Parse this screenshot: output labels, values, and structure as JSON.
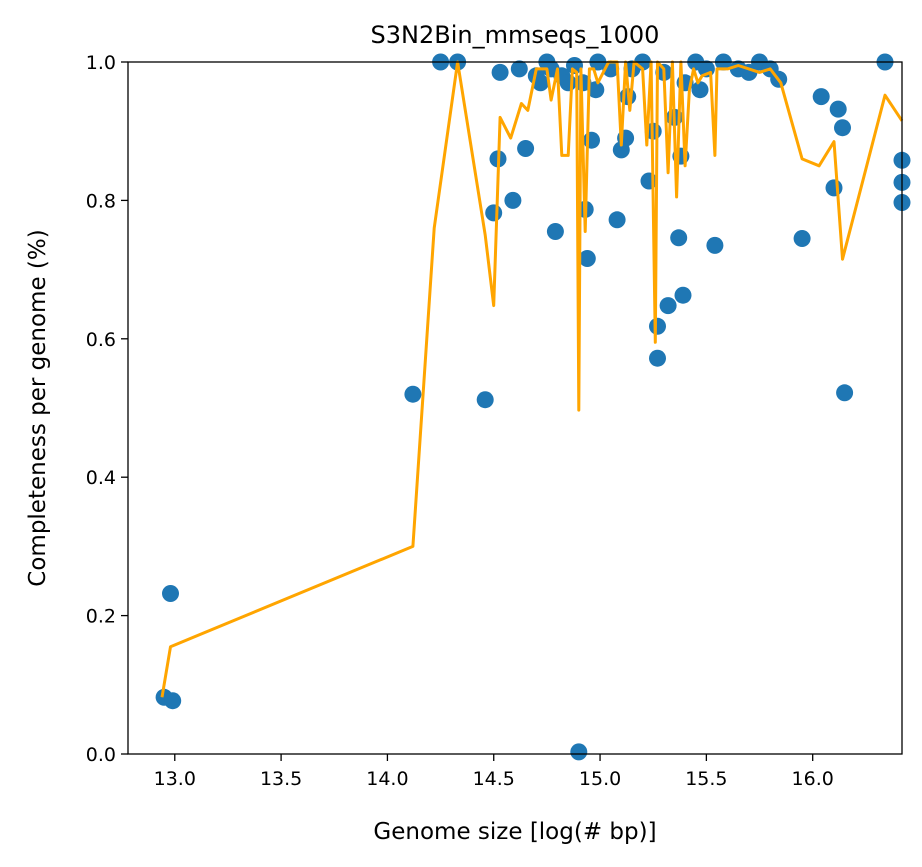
{
  "chart_data": {
    "type": "scatter",
    "title": "S3N2Bin_mmseqs_1000",
    "xlabel": "Genome size [log(# bp)]",
    "ylabel": "Completeness per genome (%)",
    "xlim": [
      12.78,
      16.42
    ],
    "ylim": [
      0.0,
      1.0
    ],
    "xticks": [
      "13.0",
      "13.5",
      "14.0",
      "14.5",
      "15.0",
      "15.5",
      "16.0"
    ],
    "yticks": [
      "0.0",
      "0.2",
      "0.4",
      "0.6",
      "0.8",
      "1.0"
    ],
    "grid": false,
    "legend": "none",
    "colors": {
      "scatter": "#1f77b4",
      "line": "#ffa500"
    },
    "series": [
      {
        "type": "scatter",
        "points": [
          [
            12.95,
            0.082
          ],
          [
            12.98,
            0.232
          ],
          [
            12.99,
            0.077
          ],
          [
            14.12,
            0.52
          ],
          [
            14.25,
            1.0
          ],
          [
            14.33,
            1.0
          ],
          [
            14.46,
            0.512
          ],
          [
            14.5,
            0.782
          ],
          [
            14.52,
            0.86
          ],
          [
            14.53,
            0.985
          ],
          [
            14.59,
            0.8
          ],
          [
            14.62,
            0.99
          ],
          [
            14.65,
            0.875
          ],
          [
            14.7,
            0.98
          ],
          [
            14.72,
            0.97
          ],
          [
            14.75,
            1.0
          ],
          [
            14.77,
            0.99
          ],
          [
            14.79,
            0.755
          ],
          [
            14.82,
            0.98
          ],
          [
            14.85,
            0.97
          ],
          [
            14.88,
            0.995
          ],
          [
            14.9,
            0.003
          ],
          [
            14.92,
            0.97
          ],
          [
            14.93,
            0.787
          ],
          [
            14.94,
            0.716
          ],
          [
            14.96,
            0.887
          ],
          [
            14.98,
            0.96
          ],
          [
            14.99,
            1.0
          ],
          [
            15.05,
            0.99
          ],
          [
            15.08,
            0.772
          ],
          [
            15.1,
            0.873
          ],
          [
            15.12,
            0.89
          ],
          [
            15.13,
            0.95
          ],
          [
            15.15,
            0.99
          ],
          [
            15.2,
            1.0
          ],
          [
            15.23,
            0.828
          ],
          [
            15.25,
            0.9
          ],
          [
            15.27,
            0.572
          ],
          [
            15.27,
            0.618
          ],
          [
            15.3,
            0.985
          ],
          [
            15.32,
            0.648
          ],
          [
            15.35,
            0.92
          ],
          [
            15.37,
            0.746
          ],
          [
            15.38,
            0.864
          ],
          [
            15.39,
            0.663
          ],
          [
            15.4,
            0.97
          ],
          [
            15.45,
            1.0
          ],
          [
            15.47,
            0.96
          ],
          [
            15.5,
            0.99
          ],
          [
            15.54,
            0.735
          ],
          [
            15.58,
            1.0
          ],
          [
            15.65,
            0.99
          ],
          [
            15.7,
            0.985
          ],
          [
            15.75,
            1.0
          ],
          [
            15.8,
            0.99
          ],
          [
            15.84,
            0.975
          ],
          [
            15.95,
            0.745
          ],
          [
            16.04,
            0.95
          ],
          [
            16.1,
            0.818
          ],
          [
            16.12,
            0.932
          ],
          [
            16.14,
            0.905
          ],
          [
            16.15,
            0.522
          ],
          [
            16.34,
            1.0
          ],
          [
            16.42,
            0.858
          ],
          [
            16.42,
            0.826
          ],
          [
            16.42,
            0.797
          ]
        ]
      },
      {
        "type": "line",
        "points": [
          [
            12.94,
            0.082
          ],
          [
            12.98,
            0.155
          ],
          [
            14.12,
            0.3
          ],
          [
            14.22,
            0.76
          ],
          [
            14.33,
            1.0
          ],
          [
            14.46,
            0.75
          ],
          [
            14.5,
            0.648
          ],
          [
            14.53,
            0.92
          ],
          [
            14.58,
            0.89
          ],
          [
            14.63,
            0.94
          ],
          [
            14.66,
            0.93
          ],
          [
            14.7,
            0.99
          ],
          [
            14.75,
            0.99
          ],
          [
            14.77,
            0.945
          ],
          [
            14.8,
            0.99
          ],
          [
            14.82,
            0.865
          ],
          [
            14.85,
            0.865
          ],
          [
            14.87,
            0.99
          ],
          [
            14.89,
            0.985
          ],
          [
            14.9,
            0.497
          ],
          [
            14.91,
            0.99
          ],
          [
            14.93,
            0.755
          ],
          [
            14.95,
            0.99
          ],
          [
            14.97,
            0.99
          ],
          [
            14.99,
            0.97
          ],
          [
            15.04,
            1.0
          ],
          [
            15.08,
            1.0
          ],
          [
            15.1,
            0.88
          ],
          [
            15.12,
            1.0
          ],
          [
            15.14,
            0.93
          ],
          [
            15.16,
            1.0
          ],
          [
            15.2,
            0.99
          ],
          [
            15.22,
            0.88
          ],
          [
            15.24,
            1.0
          ],
          [
            15.26,
            0.595
          ],
          [
            15.27,
            1.0
          ],
          [
            15.3,
            0.99
          ],
          [
            15.32,
            0.84
          ],
          [
            15.34,
            1.0
          ],
          [
            15.36,
            0.805
          ],
          [
            15.38,
            1.0
          ],
          [
            15.4,
            0.85
          ],
          [
            15.42,
            0.96
          ],
          [
            15.44,
            0.99
          ],
          [
            15.46,
            0.97
          ],
          [
            15.48,
            0.98
          ],
          [
            15.52,
            0.985
          ],
          [
            15.54,
            0.865
          ],
          [
            15.55,
            0.99
          ],
          [
            15.6,
            0.99
          ],
          [
            15.65,
            0.995
          ],
          [
            15.7,
            0.99
          ],
          [
            15.75,
            0.985
          ],
          [
            15.8,
            0.99
          ],
          [
            15.85,
            0.97
          ],
          [
            15.95,
            0.86
          ],
          [
            16.03,
            0.85
          ],
          [
            16.1,
            0.885
          ],
          [
            16.14,
            0.715
          ],
          [
            16.34,
            0.952
          ],
          [
            16.42,
            0.915
          ]
        ]
      }
    ]
  }
}
